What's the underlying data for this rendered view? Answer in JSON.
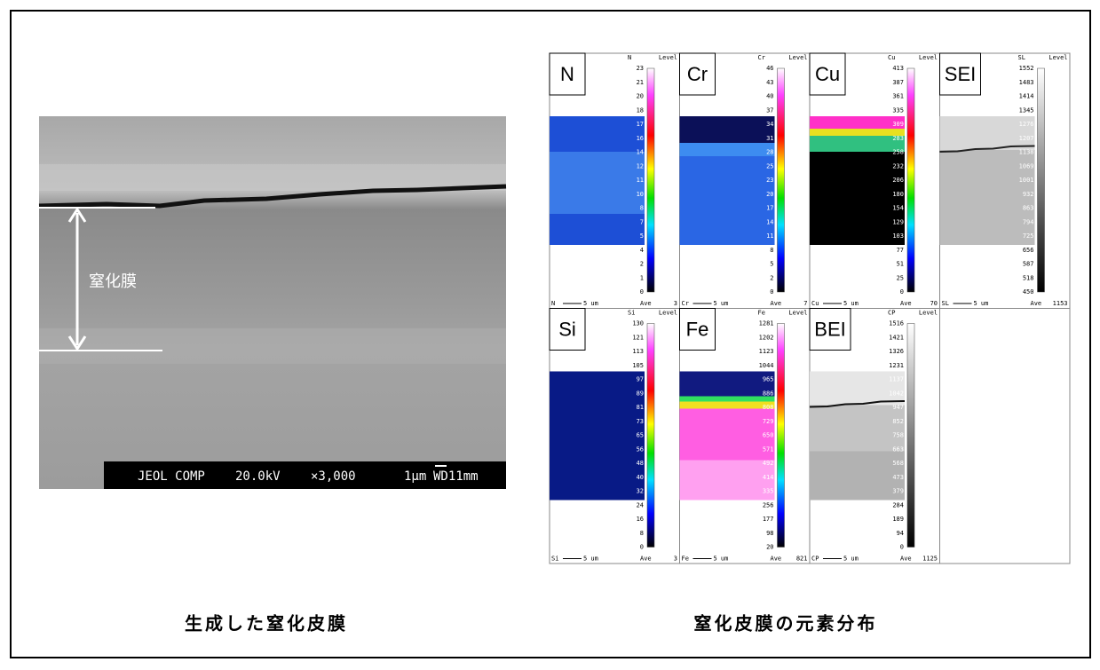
{
  "sem": {
    "label": "窒化膜",
    "info": [
      "JEOL COMP",
      "20.0kV",
      "×3,000",
      "1μm",
      "WD11mm"
    ],
    "caption": "生成した窒化皮膜"
  },
  "maps": {
    "caption": "窒化皮膜の元素分布",
    "level_label": "Level",
    "ave_label": "Ave",
    "scale": "5 um",
    "panels": [
      {
        "label": "N",
        "code": "N",
        "ave": "3",
        "levels": [
          23,
          21,
          20,
          18,
          17,
          16,
          14,
          12,
          11,
          10,
          8,
          7,
          5,
          4,
          2,
          1,
          0
        ]
      },
      {
        "label": "Cr",
        "code": "Cr",
        "ave": "7",
        "levels": [
          46,
          43,
          40,
          37,
          34,
          31,
          28,
          25,
          23,
          20,
          17,
          14,
          11,
          8,
          5,
          2,
          0
        ]
      },
      {
        "label": "Cu",
        "code": "Cu",
        "ave": "70",
        "levels": [
          413,
          387,
          361,
          335,
          309,
          283,
          258,
          232,
          206,
          180,
          154,
          129,
          103,
          77,
          51,
          25,
          0
        ]
      },
      {
        "label": "SEI",
        "code": "SL",
        "ave": "1153",
        "levels": [
          1552,
          1483,
          1414,
          1345,
          1276,
          1207,
          1138,
          1069,
          1001,
          932,
          863,
          794,
          725,
          656,
          587,
          518,
          450
        ]
      },
      {
        "label": "Si",
        "code": "Si",
        "ave": "3",
        "levels": [
          130,
          121,
          113,
          105,
          97,
          89,
          81,
          73,
          65,
          56,
          48,
          40,
          32,
          24,
          16,
          8,
          0
        ]
      },
      {
        "label": "Fe",
        "code": "Fe",
        "ave": "821",
        "levels": [
          1281,
          1202,
          1123,
          1044,
          965,
          886,
          808,
          729,
          650,
          571,
          492,
          414,
          335,
          256,
          177,
          98,
          20
        ]
      },
      {
        "label": "BEI",
        "code": "CP",
        "ave": "1125",
        "levels": [
          1516,
          1421,
          1326,
          1231,
          1137,
          1042,
          947,
          852,
          758,
          663,
          568,
          473,
          379,
          284,
          189,
          94,
          0
        ]
      }
    ]
  }
}
